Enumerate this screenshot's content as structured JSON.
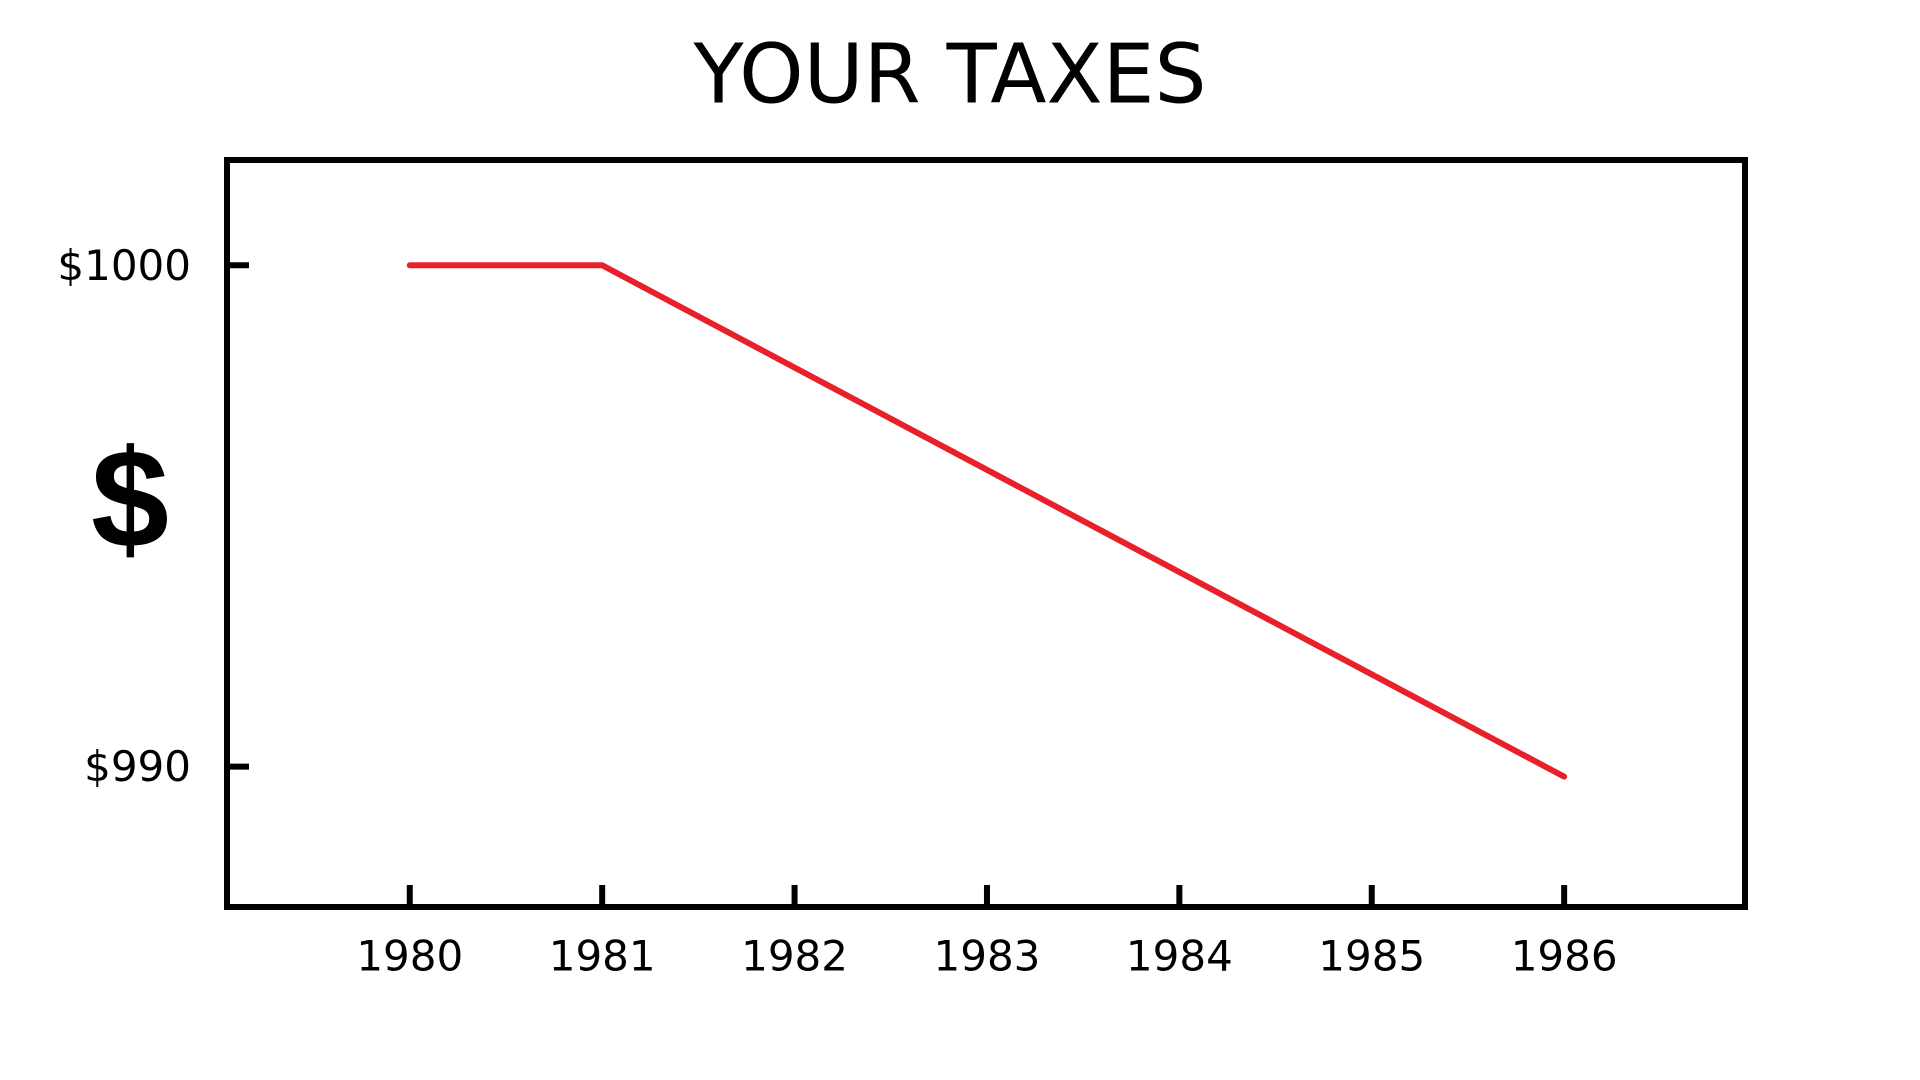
{
  "chart_data": {
    "type": "line",
    "title": "YOUR TAXES",
    "y_label": "$",
    "x": [
      1980,
      1981,
      1986
    ],
    "values": [
      1000,
      1000,
      989.8
    ],
    "color": "#e8202a",
    "xlim": [
      1979.05,
      1986.94
    ],
    "xticks": [
      1980,
      1981,
      1982,
      1983,
      1984,
      1985,
      1986
    ],
    "ylim": [
      987.2,
      1002.1
    ],
    "yticks": [
      {
        "value": 990,
        "label": "$990"
      },
      {
        "value": 1000,
        "label": "$1000"
      }
    ],
    "grid": false
  }
}
